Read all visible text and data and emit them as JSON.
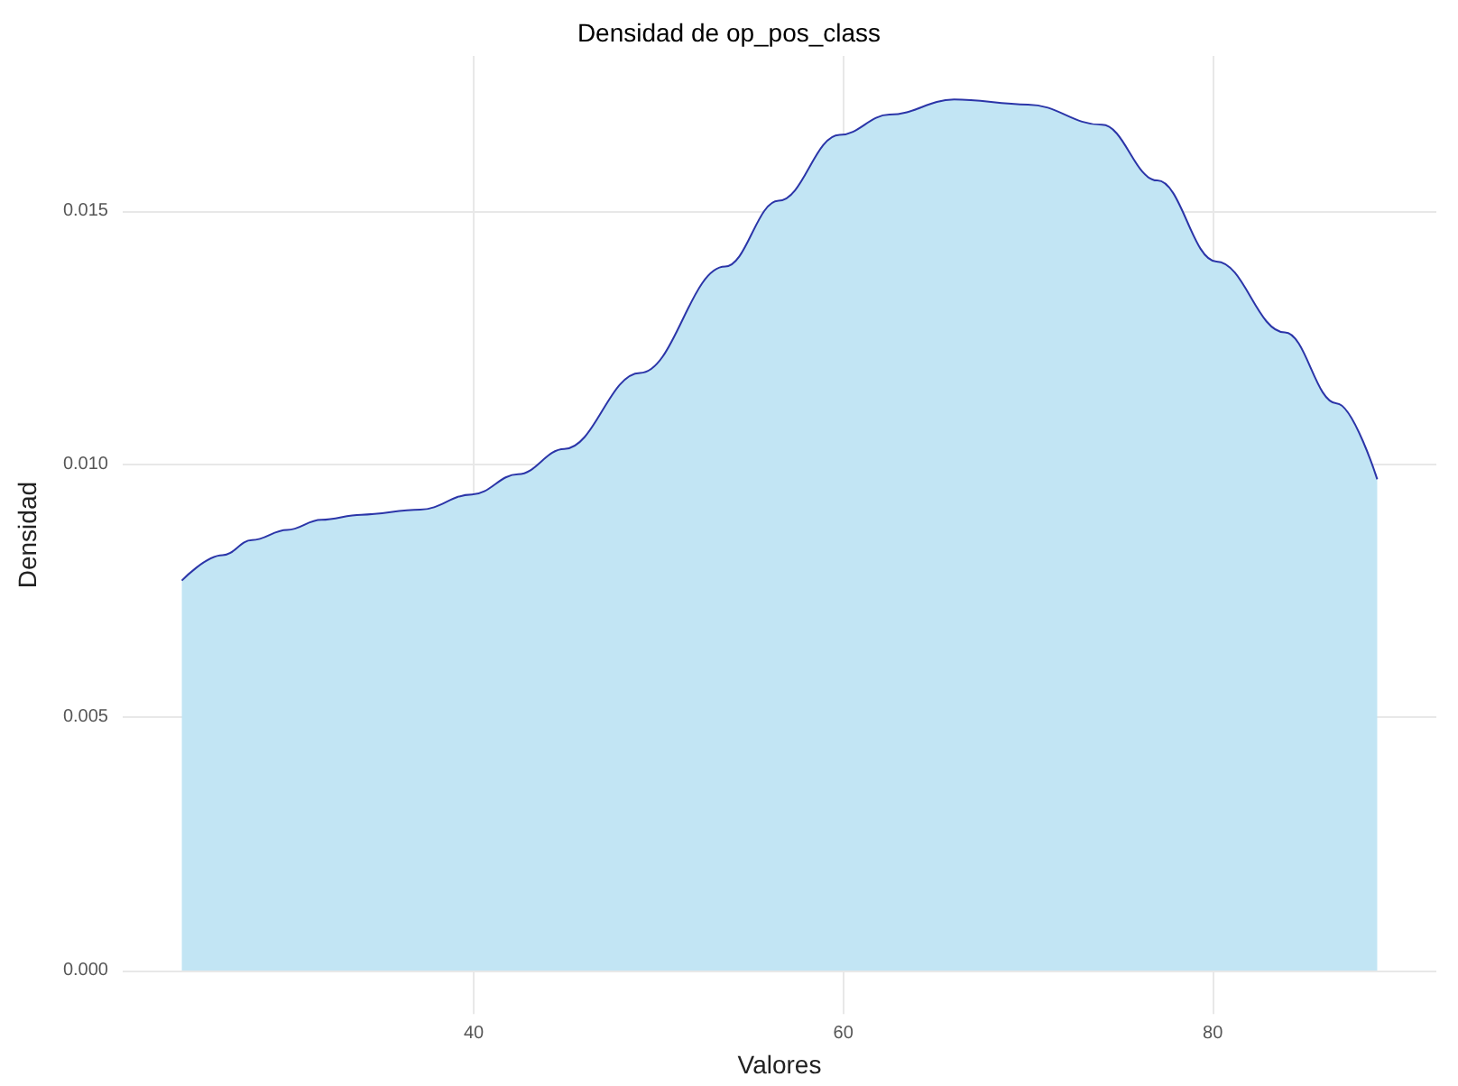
{
  "chart_data": {
    "type": "area",
    "title": "Densidad de op_pos_class",
    "xlabel": "Valores",
    "ylabel": "Densidad",
    "x": [
      24.2,
      26.4,
      28.0,
      29.9,
      31.75,
      33.9,
      37.1,
      39.9,
      42.4,
      44.9,
      49,
      53.6,
      56.5,
      59.8,
      62.5,
      66,
      70,
      74,
      77,
      80.2,
      83.9,
      86.7,
      88.9
    ],
    "series": [
      {
        "color": "#c2e5f4",
        "values": [
          0.0077,
          0.0082,
          0.0085,
          0.0087,
          0.0089,
          0.009,
          0.0091,
          0.0094,
          0.0098,
          0.0103,
          0.0118,
          0.0139,
          0.0152,
          0.0165,
          0.0169,
          0.0172,
          0.0171,
          0.0167,
          0.0156,
          0.014,
          0.0126,
          0.0112,
          0.0097
        ]
      }
    ],
    "xlim": [
      21,
      92.1
    ],
    "xticks": [
      40,
      60,
      80
    ],
    "ylim": [
      -0.00086,
      0.01806
    ],
    "yticks": [
      {
        "value": 0,
        "label": "0.000"
      },
      {
        "value": 0.005,
        "label": "0.005"
      },
      {
        "value": 0.01,
        "label": "0.010"
      },
      0.015
    ],
    "grid": true,
    "marker": "none",
    "line_style": "solid"
  }
}
